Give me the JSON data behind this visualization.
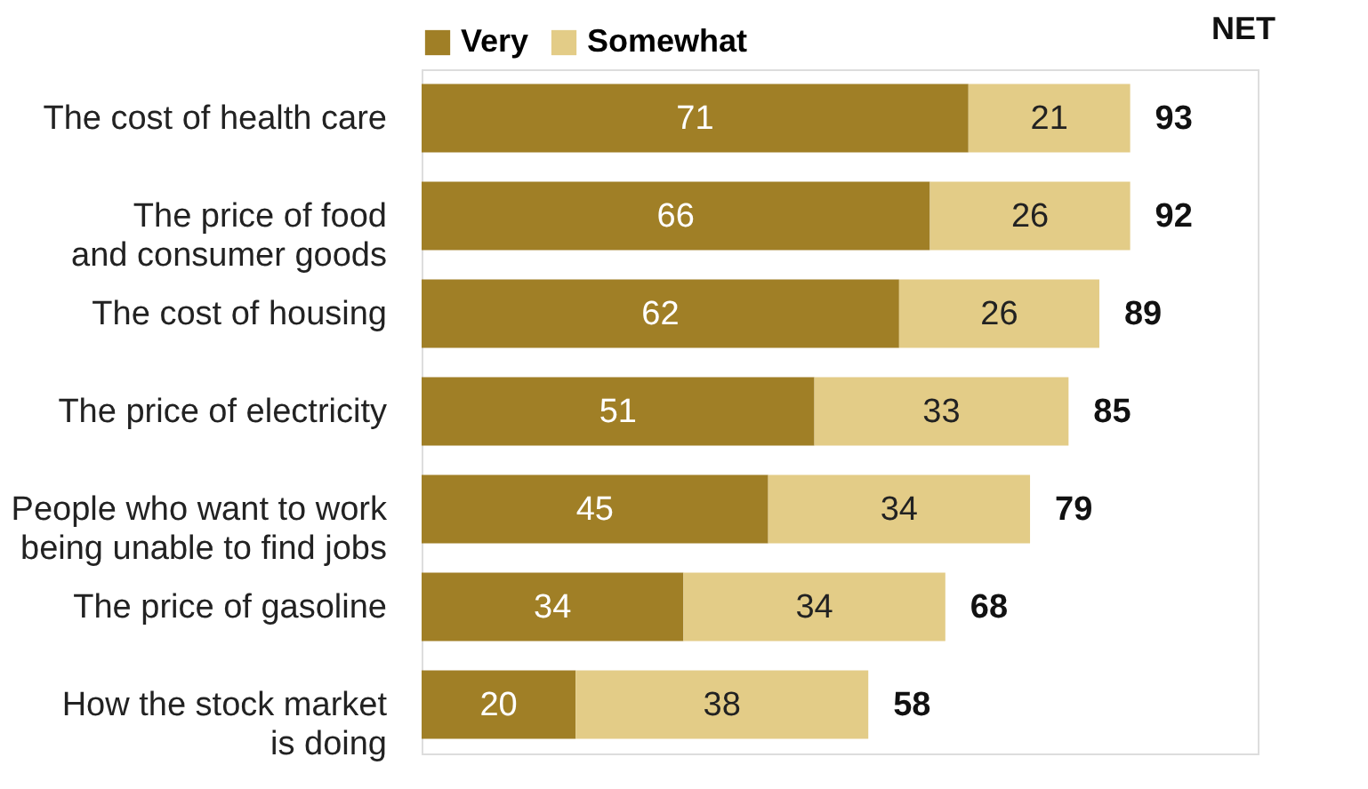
{
  "chart_data": {
    "type": "bar",
    "orientation": "horizontal",
    "stacked": true,
    "data_labels": true,
    "legend": "top",
    "grid": false,
    "categories": [
      "The cost of health care",
      "The price of food\nand consumer goods",
      "The cost of housing",
      "The price of electricity",
      "People who want to work\nbeing unable to find jobs",
      "The price of gasoline",
      "How the stock market\nis doing"
    ],
    "series": [
      {
        "name": "Very",
        "color": "#a07f26",
        "values": [
          71,
          66,
          62,
          51,
          45,
          34,
          20
        ]
      },
      {
        "name": "Somewhat",
        "color": "#e3cc87",
        "values": [
          21,
          26,
          26,
          33,
          34,
          34,
          38
        ]
      }
    ],
    "totals": [
      "93",
      "92",
      "89",
      "85",
      "79",
      "68",
      "58"
    ],
    "annotations": [
      "NET"
    ]
  }
}
